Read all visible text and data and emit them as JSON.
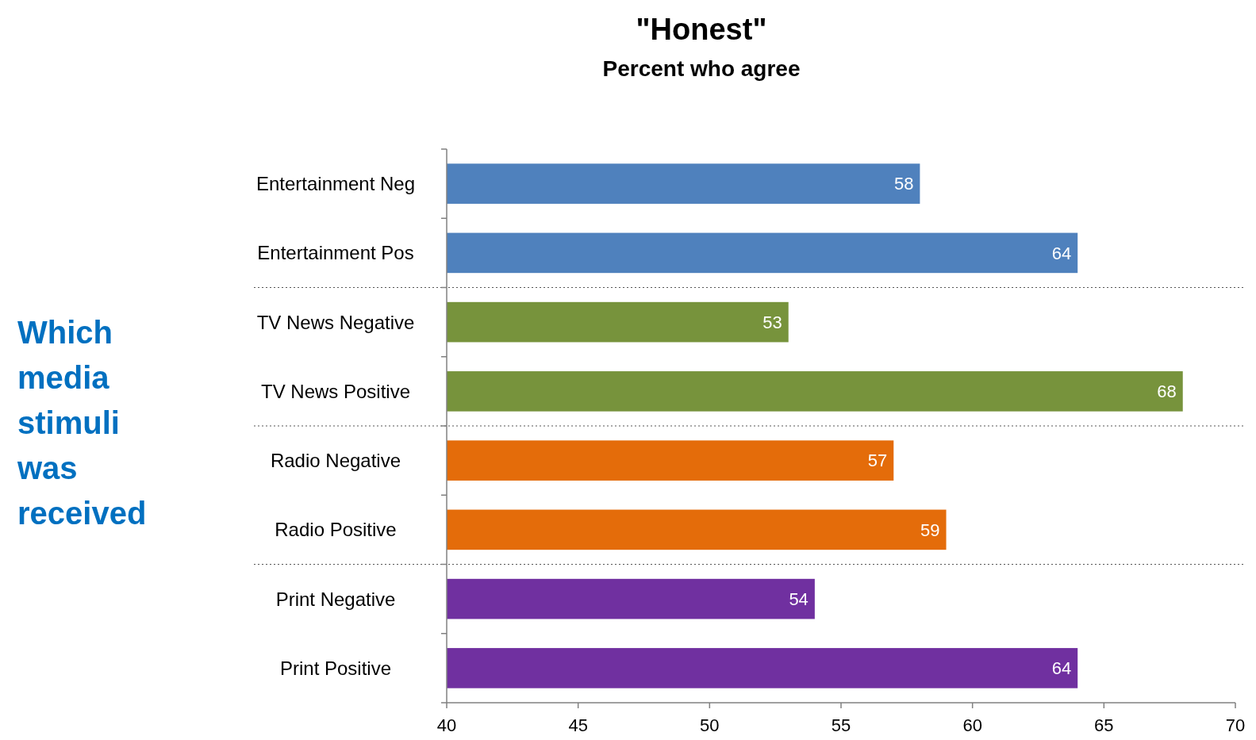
{
  "chart_data": {
    "type": "bar",
    "orientation": "horizontal",
    "title": "\"Honest\"",
    "subtitle": "Percent who agree",
    "ylabel": "Which media stimuli was received",
    "categories": [
      "Entertainment Neg",
      "Entertainment Pos",
      "TV News Negative",
      "TV News Positive",
      "Radio Negative",
      "Radio Positive",
      "Print Negative",
      "Print Positive"
    ],
    "values": [
      58,
      64,
      53,
      68,
      57,
      59,
      54,
      64
    ],
    "colors": [
      "#4f81bd",
      "#4f81bd",
      "#77933c",
      "#77933c",
      "#e46c0a",
      "#e46c0a",
      "#7030a0",
      "#7030a0"
    ],
    "xlim": [
      40,
      70
    ],
    "xticks": [
      40,
      45,
      50,
      55,
      60,
      65,
      70
    ],
    "data_labels": true
  }
}
